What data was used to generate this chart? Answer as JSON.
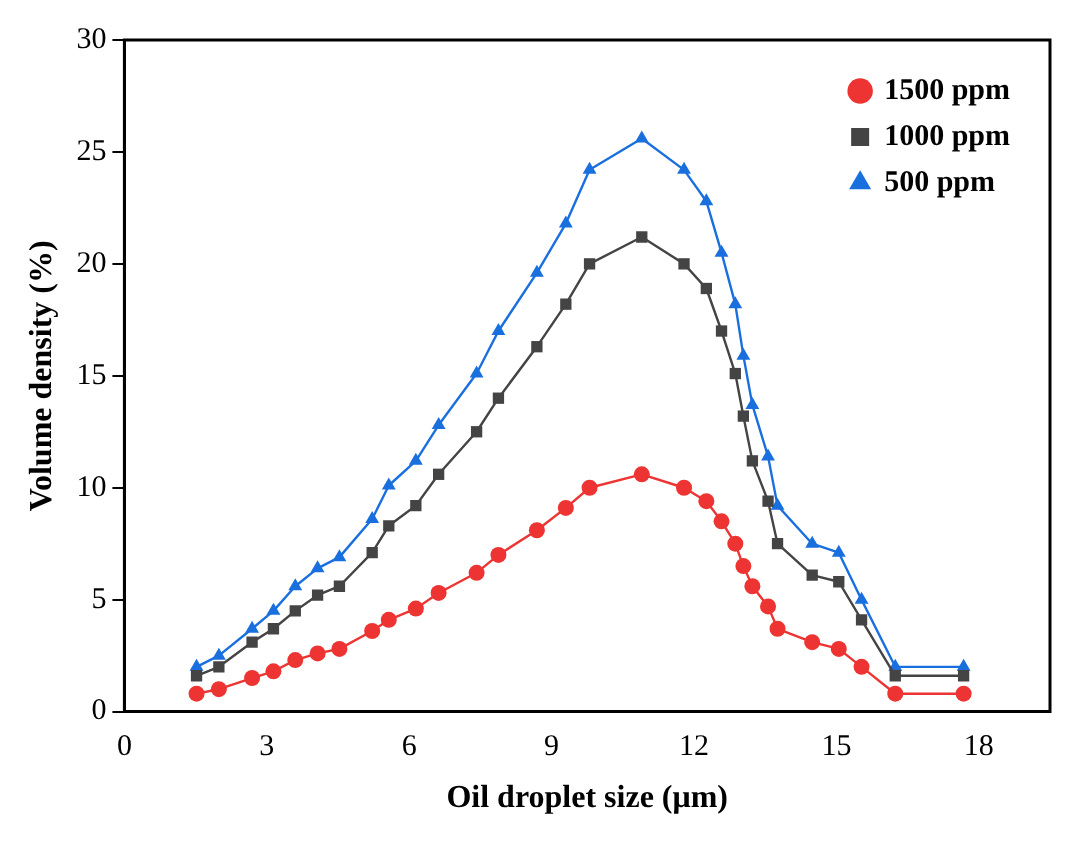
{
  "chart_data": {
    "type": "line",
    "xlabel": "Oil droplet size (μm)",
    "ylabel": "Volume density (%)",
    "x": [
      1.52,
      1.99,
      2.69,
      3.14,
      3.6,
      4.07,
      4.53,
      5.22,
      5.57,
      6.14,
      6.62,
      7.42,
      7.88,
      8.69,
      9.3,
      9.8,
      10.9,
      11.79,
      12.26,
      12.58,
      12.87,
      13.04,
      13.23,
      13.56,
      13.76,
      14.49,
      15.05,
      15.53,
      16.24,
      17.68
    ],
    "series": [
      {
        "name": "1500 ppm",
        "color": "#ee3333",
        "marker": "circle",
        "values": [
          0.8,
          1.0,
          1.5,
          1.8,
          2.3,
          2.6,
          2.8,
          3.6,
          4.1,
          4.6,
          5.3,
          6.2,
          7.0,
          8.1,
          9.1,
          10.0,
          10.6,
          10.0,
          9.4,
          8.5,
          7.5,
          6.5,
          5.6,
          4.7,
          3.7,
          3.1,
          2.8,
          2.0,
          0.8,
          0.8
        ]
      },
      {
        "name": "1000 ppm",
        "color": "#444444",
        "marker": "square",
        "values": [
          1.6,
          2.0,
          3.1,
          3.7,
          4.5,
          5.2,
          5.6,
          7.1,
          8.3,
          9.2,
          10.6,
          12.5,
          14.0,
          16.3,
          18.2,
          20.0,
          21.2,
          20.0,
          18.9,
          17.0,
          15.1,
          13.2,
          11.2,
          9.4,
          7.5,
          6.1,
          5.8,
          4.1,
          1.6,
          1.6
        ]
      },
      {
        "name": "500 ppm",
        "color": "#1a6fdf",
        "marker": "triangle",
        "values": [
          2.0,
          2.5,
          3.7,
          4.5,
          5.6,
          6.4,
          6.9,
          8.6,
          10.1,
          11.2,
          12.8,
          15.1,
          17.0,
          19.6,
          21.8,
          24.2,
          25.6,
          24.2,
          22.8,
          20.5,
          18.2,
          15.9,
          13.7,
          11.4,
          9.2,
          7.5,
          7.1,
          5.0,
          2.0,
          2.0
        ]
      }
    ],
    "xlim": [
      0,
      19.5
    ],
    "xticks": [
      0,
      3,
      6,
      9,
      12,
      15,
      18
    ],
    "ylim": [
      0,
      30
    ],
    "yticks": [
      0,
      5,
      10,
      15,
      20,
      25,
      30
    ],
    "grid": false,
    "legend": "top right",
    "line_style": "solid"
  }
}
